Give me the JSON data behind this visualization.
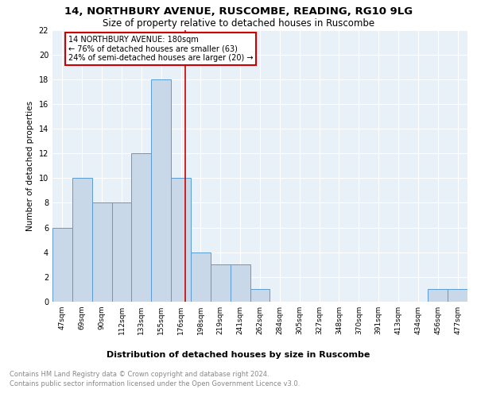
{
  "title1": "14, NORTHBURY AVENUE, RUSCOMBE, READING, RG10 9LG",
  "title2": "Size of property relative to detached houses in Ruscombe",
  "xlabel": "Distribution of detached houses by size in Ruscombe",
  "ylabel": "Number of detached properties",
  "categories": [
    "47sqm",
    "69sqm",
    "90sqm",
    "112sqm",
    "133sqm",
    "155sqm",
    "176sqm",
    "198sqm",
    "219sqm",
    "241sqm",
    "262sqm",
    "284sqm",
    "305sqm",
    "327sqm",
    "348sqm",
    "370sqm",
    "391sqm",
    "413sqm",
    "434sqm",
    "456sqm",
    "477sqm"
  ],
  "values": [
    6,
    10,
    8,
    8,
    12,
    18,
    10,
    4,
    3,
    3,
    1,
    0,
    0,
    0,
    0,
    0,
    0,
    0,
    0,
    1,
    1
  ],
  "bar_color": "#c8d8e8",
  "bar_edge_color": "#5b9bd5",
  "vline_x_index": 6.22,
  "vline_color": "#cc0000",
  "ylim": [
    0,
    22
  ],
  "yticks": [
    0,
    2,
    4,
    6,
    8,
    10,
    12,
    14,
    16,
    18,
    20,
    22
  ],
  "annotation_title": "14 NORTHBURY AVENUE: 180sqm",
  "annotation_line1": "← 76% of detached houses are smaller (63)",
  "annotation_line2": "24% of semi-detached houses are larger (20) →",
  "annotation_box_color": "#ffffff",
  "annotation_box_edge_color": "#cc0000",
  "footer1": "Contains HM Land Registry data © Crown copyright and database right 2024.",
  "footer2": "Contains public sector information licensed under the Open Government Licence v3.0.",
  "bg_color": "#e8f0f8",
  "grid_color": "#ffffff",
  "title1_fontsize": 9.5,
  "title2_fontsize": 8.5,
  "xlabel_fontsize": 8,
  "ylabel_fontsize": 7.5,
  "footer_fontsize": 6,
  "annot_fontsize": 7
}
